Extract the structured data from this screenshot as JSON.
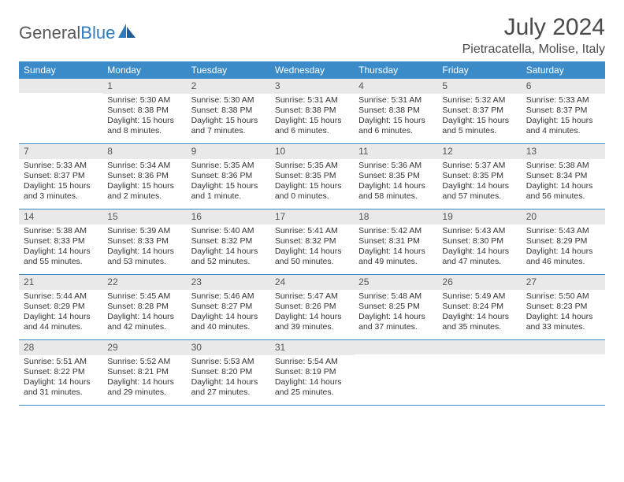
{
  "brand": {
    "part1": "General",
    "part2": "Blue"
  },
  "title": "July 2024",
  "location": "Pietracatella, Molise, Italy",
  "colors": {
    "header_bg": "#3b8bc9",
    "header_text": "#ffffff",
    "daynum_bg": "#e9e9e9",
    "border": "#3b8bc9",
    "text": "#333333",
    "page_bg": "#ffffff"
  },
  "day_labels": [
    "Sunday",
    "Monday",
    "Tuesday",
    "Wednesday",
    "Thursday",
    "Friday",
    "Saturday"
  ],
  "weeks": [
    [
      {
        "n": "",
        "sr": "",
        "ss": "",
        "dl": ""
      },
      {
        "n": "1",
        "sr": "Sunrise: 5:30 AM",
        "ss": "Sunset: 8:38 PM",
        "dl": "Daylight: 15 hours and 8 minutes."
      },
      {
        "n": "2",
        "sr": "Sunrise: 5:30 AM",
        "ss": "Sunset: 8:38 PM",
        "dl": "Daylight: 15 hours and 7 minutes."
      },
      {
        "n": "3",
        "sr": "Sunrise: 5:31 AM",
        "ss": "Sunset: 8:38 PM",
        "dl": "Daylight: 15 hours and 6 minutes."
      },
      {
        "n": "4",
        "sr": "Sunrise: 5:31 AM",
        "ss": "Sunset: 8:38 PM",
        "dl": "Daylight: 15 hours and 6 minutes."
      },
      {
        "n": "5",
        "sr": "Sunrise: 5:32 AM",
        "ss": "Sunset: 8:37 PM",
        "dl": "Daylight: 15 hours and 5 minutes."
      },
      {
        "n": "6",
        "sr": "Sunrise: 5:33 AM",
        "ss": "Sunset: 8:37 PM",
        "dl": "Daylight: 15 hours and 4 minutes."
      }
    ],
    [
      {
        "n": "7",
        "sr": "Sunrise: 5:33 AM",
        "ss": "Sunset: 8:37 PM",
        "dl": "Daylight: 15 hours and 3 minutes."
      },
      {
        "n": "8",
        "sr": "Sunrise: 5:34 AM",
        "ss": "Sunset: 8:36 PM",
        "dl": "Daylight: 15 hours and 2 minutes."
      },
      {
        "n": "9",
        "sr": "Sunrise: 5:35 AM",
        "ss": "Sunset: 8:36 PM",
        "dl": "Daylight: 15 hours and 1 minute."
      },
      {
        "n": "10",
        "sr": "Sunrise: 5:35 AM",
        "ss": "Sunset: 8:35 PM",
        "dl": "Daylight: 15 hours and 0 minutes."
      },
      {
        "n": "11",
        "sr": "Sunrise: 5:36 AM",
        "ss": "Sunset: 8:35 PM",
        "dl": "Daylight: 14 hours and 58 minutes."
      },
      {
        "n": "12",
        "sr": "Sunrise: 5:37 AM",
        "ss": "Sunset: 8:35 PM",
        "dl": "Daylight: 14 hours and 57 minutes."
      },
      {
        "n": "13",
        "sr": "Sunrise: 5:38 AM",
        "ss": "Sunset: 8:34 PM",
        "dl": "Daylight: 14 hours and 56 minutes."
      }
    ],
    [
      {
        "n": "14",
        "sr": "Sunrise: 5:38 AM",
        "ss": "Sunset: 8:33 PM",
        "dl": "Daylight: 14 hours and 55 minutes."
      },
      {
        "n": "15",
        "sr": "Sunrise: 5:39 AM",
        "ss": "Sunset: 8:33 PM",
        "dl": "Daylight: 14 hours and 53 minutes."
      },
      {
        "n": "16",
        "sr": "Sunrise: 5:40 AM",
        "ss": "Sunset: 8:32 PM",
        "dl": "Daylight: 14 hours and 52 minutes."
      },
      {
        "n": "17",
        "sr": "Sunrise: 5:41 AM",
        "ss": "Sunset: 8:32 PM",
        "dl": "Daylight: 14 hours and 50 minutes."
      },
      {
        "n": "18",
        "sr": "Sunrise: 5:42 AM",
        "ss": "Sunset: 8:31 PM",
        "dl": "Daylight: 14 hours and 49 minutes."
      },
      {
        "n": "19",
        "sr": "Sunrise: 5:43 AM",
        "ss": "Sunset: 8:30 PM",
        "dl": "Daylight: 14 hours and 47 minutes."
      },
      {
        "n": "20",
        "sr": "Sunrise: 5:43 AM",
        "ss": "Sunset: 8:29 PM",
        "dl": "Daylight: 14 hours and 46 minutes."
      }
    ],
    [
      {
        "n": "21",
        "sr": "Sunrise: 5:44 AM",
        "ss": "Sunset: 8:29 PM",
        "dl": "Daylight: 14 hours and 44 minutes."
      },
      {
        "n": "22",
        "sr": "Sunrise: 5:45 AM",
        "ss": "Sunset: 8:28 PM",
        "dl": "Daylight: 14 hours and 42 minutes."
      },
      {
        "n": "23",
        "sr": "Sunrise: 5:46 AM",
        "ss": "Sunset: 8:27 PM",
        "dl": "Daylight: 14 hours and 40 minutes."
      },
      {
        "n": "24",
        "sr": "Sunrise: 5:47 AM",
        "ss": "Sunset: 8:26 PM",
        "dl": "Daylight: 14 hours and 39 minutes."
      },
      {
        "n": "25",
        "sr": "Sunrise: 5:48 AM",
        "ss": "Sunset: 8:25 PM",
        "dl": "Daylight: 14 hours and 37 minutes."
      },
      {
        "n": "26",
        "sr": "Sunrise: 5:49 AM",
        "ss": "Sunset: 8:24 PM",
        "dl": "Daylight: 14 hours and 35 minutes."
      },
      {
        "n": "27",
        "sr": "Sunrise: 5:50 AM",
        "ss": "Sunset: 8:23 PM",
        "dl": "Daylight: 14 hours and 33 minutes."
      }
    ],
    [
      {
        "n": "28",
        "sr": "Sunrise: 5:51 AM",
        "ss": "Sunset: 8:22 PM",
        "dl": "Daylight: 14 hours and 31 minutes."
      },
      {
        "n": "29",
        "sr": "Sunrise: 5:52 AM",
        "ss": "Sunset: 8:21 PM",
        "dl": "Daylight: 14 hours and 29 minutes."
      },
      {
        "n": "30",
        "sr": "Sunrise: 5:53 AM",
        "ss": "Sunset: 8:20 PM",
        "dl": "Daylight: 14 hours and 27 minutes."
      },
      {
        "n": "31",
        "sr": "Sunrise: 5:54 AM",
        "ss": "Sunset: 8:19 PM",
        "dl": "Daylight: 14 hours and 25 minutes."
      },
      {
        "n": "",
        "sr": "",
        "ss": "",
        "dl": ""
      },
      {
        "n": "",
        "sr": "",
        "ss": "",
        "dl": ""
      },
      {
        "n": "",
        "sr": "",
        "ss": "",
        "dl": ""
      }
    ]
  ]
}
